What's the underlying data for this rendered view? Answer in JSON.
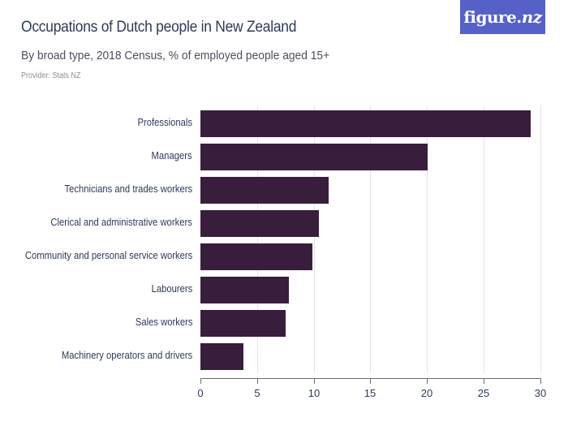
{
  "header": {
    "title": "Occupations of Dutch people in New Zealand",
    "subtitle": "By broad type, 2018 Census, % of employed people aged 15+",
    "provider": "Provider: Stats NZ",
    "logo": {
      "main": "figure.",
      "accent": "nz",
      "bg_color": "#5561c7"
    }
  },
  "chart_data": {
    "type": "bar",
    "orientation": "horizontal",
    "title": "Occupations of Dutch people in New Zealand",
    "subtitle": "By broad type, 2018 Census, % of employed people aged 15+",
    "xlabel": "",
    "ylabel": "",
    "xlim": [
      0,
      30
    ],
    "x_ticks": [
      "0",
      "5",
      "10",
      "15",
      "20",
      "25",
      "30"
    ],
    "grid": true,
    "bar_color": "#381e3c",
    "categories": [
      "Professionals",
      "Managers",
      "Technicians and trades workers",
      "Clerical and administrative workers",
      "Community and personal service workers",
      "Labourers",
      "Sales workers",
      "Machinery operators and drivers"
    ],
    "values": [
      29.2,
      20.1,
      11.3,
      10.5,
      9.9,
      7.8,
      7.5,
      3.8
    ]
  }
}
